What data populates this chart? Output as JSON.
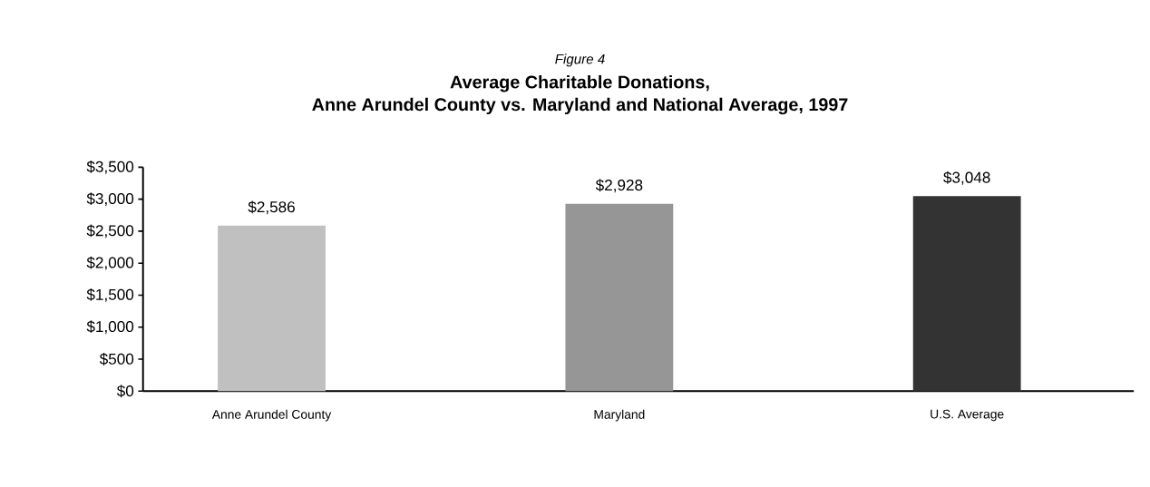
{
  "chart_data": {
    "type": "bar",
    "annotations": [
      "Figure 4"
    ],
    "title": "Average Charitable Donations,",
    "subtitle": "Anne Arundel County vs. Maryland and National Average, 1997",
    "categories": [
      "Anne Arundel County",
      "Maryland",
      "U.S. Average"
    ],
    "values": [
      2586,
      2928,
      3048
    ],
    "value_labels": [
      "$2,586",
      "$2,928",
      "$3,048"
    ],
    "colors": [
      "#c0c0c0",
      "#969696",
      "#333333"
    ],
    "ylim": [
      0,
      3500
    ],
    "yticks": [
      {
        "value": 0,
        "label": "$0"
      },
      {
        "value": 500,
        "label": "$500"
      },
      {
        "value": 1000,
        "label": "$1,000"
      },
      {
        "value": 1500,
        "label": "$1,500"
      },
      {
        "value": 2000,
        "label": "$2,000"
      },
      {
        "value": 2500,
        "label": "$2,500"
      },
      {
        "value": 3000,
        "label": "$3,000"
      },
      {
        "value": 3500,
        "label": "$3,500"
      }
    ],
    "grid": false
  }
}
